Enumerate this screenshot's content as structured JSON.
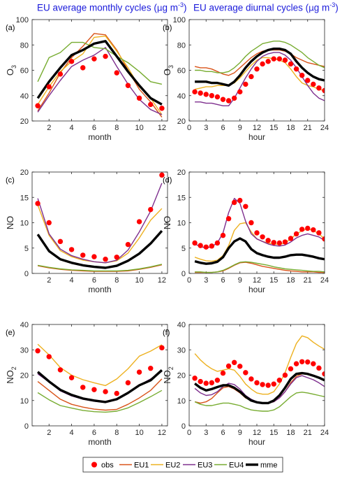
{
  "titles": {
    "left": {
      "text": "EU average monthly cycles (",
      "mu": "μ",
      "unit": "g m",
      "exp": "-3",
      "close": ")"
    },
    "right": {
      "text": "EU average diurnal cycles (",
      "mu": "μ",
      "unit": "g m",
      "exp": "-3",
      "close": ")"
    }
  },
  "colors": {
    "obs": "#ff0000",
    "EU1": "#d95319",
    "EU2": "#edb120",
    "EU3": "#7e2f8e",
    "EU4": "#77ac30",
    "mme": "#000000"
  },
  "legend": [
    {
      "key": "obs",
      "label": "obs",
      "kind": "marker"
    },
    {
      "key": "EU1",
      "label": "EU1",
      "kind": "line"
    },
    {
      "key": "EU2",
      "label": "EU2",
      "kind": "line"
    },
    {
      "key": "EU3",
      "label": "EU3",
      "kind": "line"
    },
    {
      "key": "EU4",
      "label": "EU4",
      "kind": "line"
    },
    {
      "key": "mme",
      "label": "mme",
      "kind": "thick"
    }
  ],
  "chart_data": [
    {
      "panel": "(a)",
      "type": "line",
      "xlabel": "month",
      "ylabel": "O",
      "ylabel_sub": "3",
      "xlim": [
        0.5,
        12.5
      ],
      "ylim": [
        20,
        100
      ],
      "xticks": [
        2,
        4,
        6,
        8,
        10,
        12
      ],
      "yticks": [
        20,
        40,
        60,
        80,
        100
      ],
      "x": [
        1,
        2,
        3,
        4,
        5,
        6,
        7,
        8,
        9,
        10,
        11,
        12
      ],
      "series": [
        {
          "name": "obs",
          "values": [
            32,
            47,
            57,
            67,
            62,
            69,
            71,
            58,
            48,
            38,
            33,
            30
          ]
        },
        {
          "name": "EU1",
          "values": [
            28,
            42,
            58,
            70,
            79,
            89,
            88,
            76,
            60,
            45,
            35,
            23
          ]
        },
        {
          "name": "EU2",
          "values": [
            33,
            47,
            59,
            67,
            73,
            86,
            87,
            75,
            62,
            47,
            38,
            25
          ]
        },
        {
          "name": "EU3",
          "values": [
            27,
            40,
            52,
            63,
            68,
            72,
            78,
            63,
            49,
            37,
            29,
            25
          ]
        },
        {
          "name": "EU4",
          "values": [
            51,
            70,
            74,
            82,
            82,
            78,
            77,
            71,
            66,
            59,
            51,
            49
          ]
        },
        {
          "name": "mme",
          "values": [
            38,
            51,
            62,
            72,
            76,
            81,
            83,
            71,
            59,
            48,
            38,
            33
          ]
        }
      ]
    },
    {
      "panel": "(b)",
      "type": "line",
      "xlabel": "hour",
      "ylabel": "O",
      "ylabel_sub": "3",
      "xlim": [
        0,
        24
      ],
      "ylim": [
        20,
        100
      ],
      "xticks": [
        0,
        3,
        6,
        9,
        12,
        15,
        18,
        21,
        24
      ],
      "yticks": [
        20,
        40,
        60,
        80,
        100
      ],
      "x": [
        1,
        2,
        3,
        4,
        5,
        6,
        7,
        8,
        9,
        10,
        11,
        12,
        13,
        14,
        15,
        16,
        17,
        18,
        19,
        20,
        21,
        22,
        23,
        24
      ],
      "series": [
        {
          "name": "obs",
          "values": [
            43,
            42,
            41,
            40,
            39,
            37,
            36,
            38,
            43,
            49,
            55,
            61,
            65,
            67,
            69,
            69,
            68,
            65,
            61,
            56,
            52,
            49,
            46,
            44
          ]
        },
        {
          "name": "EU1",
          "values": [
            63,
            62,
            62,
            61,
            59,
            57,
            56,
            58,
            62,
            66,
            70,
            73,
            75,
            76,
            76,
            76,
            75,
            73,
            70,
            68,
            66,
            65,
            64,
            63
          ]
        },
        {
          "name": "EU2",
          "values": [
            45,
            46,
            47,
            47,
            48,
            48,
            48,
            50,
            54,
            59,
            64,
            68,
            70,
            70,
            69,
            68,
            66,
            61,
            55,
            50,
            48,
            47,
            45,
            44
          ]
        },
        {
          "name": "EU3",
          "values": [
            35,
            35,
            34,
            34,
            33,
            32,
            32,
            38,
            46,
            54,
            61,
            67,
            71,
            73,
            74,
            74,
            72,
            68,
            62,
            55,
            48,
            42,
            38,
            36
          ]
        },
        {
          "name": "EU4",
          "values": [
            60,
            60,
            59,
            59,
            58,
            58,
            59,
            62,
            66,
            71,
            75,
            78,
            81,
            82,
            83,
            83,
            82,
            80,
            77,
            74,
            70,
            67,
            64,
            62
          ]
        },
        {
          "name": "mme",
          "values": [
            51,
            51,
            51,
            50,
            50,
            49,
            48,
            51,
            56,
            62,
            67,
            71,
            74,
            76,
            77,
            77,
            76,
            73,
            67,
            62,
            58,
            55,
            53,
            52
          ]
        }
      ]
    },
    {
      "panel": "(c)",
      "type": "line",
      "xlabel": "month",
      "ylabel": "NO",
      "ylabel_sub": "",
      "xlim": [
        0.5,
        12.5
      ],
      "ylim": [
        0,
        20
      ],
      "xticks": [
        2,
        4,
        6,
        8,
        10,
        12
      ],
      "yticks": [
        0,
        5,
        10,
        15,
        20
      ],
      "x": [
        1,
        2,
        3,
        4,
        5,
        6,
        7,
        8,
        9,
        10,
        11,
        12
      ],
      "series": [
        {
          "name": "obs",
          "values": [
            13.8,
            10.0,
            6.3,
            4.7,
            3.6,
            3.3,
            2.8,
            3.2,
            5.7,
            10.2,
            12.6,
            19.4
          ]
        },
        {
          "name": "EU1",
          "values": [
            1.5,
            1.1,
            0.8,
            0.6,
            0.5,
            0.4,
            0.4,
            0.4,
            0.5,
            0.8,
            1.2,
            1.7
          ]
        },
        {
          "name": "EU2",
          "values": [
            13.5,
            7.5,
            4.5,
            3.3,
            2.6,
            2.3,
            2.1,
            2.5,
            4.0,
            7.0,
            10.5,
            12.8
          ]
        },
        {
          "name": "EU3",
          "values": [
            14.8,
            7.8,
            4.8,
            3.5,
            2.8,
            2.3,
            2.1,
            2.6,
            4.6,
            8.2,
            12.3,
            17.8
          ]
        },
        {
          "name": "EU4",
          "values": [
            1.6,
            1.2,
            0.9,
            0.7,
            0.6,
            0.5,
            0.5,
            0.5,
            0.6,
            0.9,
            1.3,
            1.8
          ]
        },
        {
          "name": "mme",
          "values": [
            7.7,
            4.4,
            2.8,
            2.1,
            1.6,
            1.3,
            1.1,
            1.5,
            2.5,
            3.9,
            5.9,
            8.4
          ]
        }
      ]
    },
    {
      "panel": "(d)",
      "type": "line",
      "xlabel": "hour",
      "ylabel": "NO",
      "ylabel_sub": "",
      "xlim": [
        0,
        24
      ],
      "ylim": [
        0,
        20
      ],
      "xticks": [
        0,
        3,
        6,
        9,
        12,
        15,
        18,
        21,
        24
      ],
      "yticks": [
        0,
        5,
        10,
        15,
        20
      ],
      "x": [
        1,
        2,
        3,
        4,
        5,
        6,
        7,
        8,
        9,
        10,
        11,
        12,
        13,
        14,
        15,
        16,
        17,
        18,
        19,
        20,
        21,
        22,
        23,
        24
      ],
      "series": [
        {
          "name": "obs",
          "values": [
            6.0,
            5.5,
            5.2,
            5.4,
            6.0,
            7.5,
            10.8,
            14.0,
            14.4,
            13.2,
            10.0,
            8.0,
            7.2,
            6.5,
            6.1,
            6.0,
            6.2,
            6.9,
            7.8,
            8.7,
            8.9,
            8.6,
            8.0,
            6.8
          ]
        },
        {
          "name": "EU1",
          "values": [
            0.2,
            0.2,
            0.2,
            0.2,
            0.3,
            0.5,
            1.0,
            1.6,
            2.1,
            2.2,
            2.0,
            1.7,
            1.4,
            1.2,
            1.0,
            0.8,
            0.6,
            0.5,
            0.4,
            0.3,
            0.3,
            0.3,
            0.2,
            0.2
          ]
        },
        {
          "name": "EU2",
          "values": [
            3.2,
            2.8,
            2.5,
            2.4,
            2.6,
            3.5,
            5.5,
            8.5,
            9.8,
            10.0,
            8.2,
            6.8,
            6.3,
            6.0,
            5.8,
            5.7,
            6.0,
            6.8,
            7.8,
            8.4,
            8.8,
            8.5,
            7.8,
            6.8
          ]
        },
        {
          "name": "EU3",
          "values": [
            5.8,
            5.3,
            5.0,
            5.3,
            6.0,
            8.0,
            12.0,
            14.8,
            13.8,
            10.3,
            7.8,
            6.8,
            6.3,
            5.8,
            5.5,
            5.4,
            5.6,
            6.2,
            7.0,
            7.5,
            7.8,
            7.5,
            7.2,
            6.5
          ]
        },
        {
          "name": "EU4",
          "values": [
            0.3,
            0.3,
            0.2,
            0.2,
            0.3,
            0.6,
            1.1,
            1.7,
            2.2,
            2.3,
            2.2,
            2.0,
            1.8,
            1.6,
            1.3,
            1.1,
            0.9,
            0.8,
            0.7,
            0.6,
            0.5,
            0.4,
            0.4,
            0.3
          ]
        },
        {
          "name": "mme",
          "values": [
            2.4,
            2.1,
            1.9,
            2.0,
            2.3,
            3.2,
            5.0,
            6.3,
            6.9,
            6.3,
            4.8,
            4.0,
            3.6,
            3.3,
            3.1,
            3.1,
            3.3,
            3.6,
            3.7,
            3.7,
            3.5,
            3.3,
            3.0,
            2.8
          ]
        }
      ]
    },
    {
      "panel": "(e)",
      "type": "line",
      "xlabel": "month",
      "ylabel": "NO",
      "ylabel_sub": "2",
      "xlim": [
        0.5,
        12.5
      ],
      "ylim": [
        0,
        40
      ],
      "xticks": [
        2,
        4,
        6,
        8,
        10,
        12
      ],
      "yticks": [
        0,
        10,
        20,
        30,
        40
      ],
      "x": [
        1,
        2,
        3,
        4,
        5,
        6,
        7,
        8,
        9,
        10,
        11,
        12
      ],
      "series": [
        {
          "name": "obs",
          "values": [
            29.6,
            27.3,
            22.1,
            19.0,
            15.2,
            14.3,
            13.5,
            12.8,
            17.0,
            21.2,
            22.7,
            30.8
          ]
        },
        {
          "name": "EU1",
          "values": [
            17.5,
            14.0,
            10.5,
            8.5,
            7.4,
            6.6,
            6.2,
            6.5,
            8.5,
            11.0,
            14.0,
            18.5
          ]
        },
        {
          "name": "EU2",
          "values": [
            32.2,
            28.0,
            23.0,
            20.0,
            18.2,
            17.0,
            15.9,
            18.5,
            22.5,
            27.5,
            29.5,
            32.0
          ]
        },
        {
          "name": "EU3",
          "values": [
            20.5,
            17.3,
            13.8,
            11.8,
            10.5,
            9.7,
            9.2,
            10.3,
            13.0,
            16.0,
            18.5,
            21.5
          ]
        },
        {
          "name": "EU4",
          "values": [
            13.1,
            10.3,
            8.0,
            7.0,
            6.1,
            5.6,
            5.4,
            5.8,
            7.1,
            9.2,
            11.5,
            14.0
          ]
        },
        {
          "name": "mme",
          "values": [
            21.3,
            17.5,
            14.2,
            12.2,
            10.8,
            10.0,
            9.4,
            10.5,
            13.0,
            16.0,
            18.0,
            22.0
          ]
        }
      ]
    },
    {
      "panel": "(f)",
      "type": "line",
      "xlabel": "hour",
      "ylabel": "NO",
      "ylabel_sub": "2",
      "xlim": [
        0,
        24
      ],
      "ylim": [
        0,
        40
      ],
      "xticks": [
        0,
        3,
        6,
        9,
        12,
        15,
        18,
        21,
        24
      ],
      "yticks": [
        0,
        10,
        20,
        30,
        40
      ],
      "x": [
        1,
        2,
        3,
        4,
        5,
        6,
        7,
        8,
        9,
        10,
        11,
        12,
        13,
        14,
        15,
        16,
        17,
        18,
        19,
        20,
        21,
        22,
        23,
        24
      ],
      "series": [
        {
          "name": "obs",
          "values": [
            18.8,
            17.5,
            16.8,
            17.0,
            18.0,
            20.8,
            23.6,
            25.0,
            23.5,
            21.0,
            18.5,
            17.0,
            16.3,
            16.0,
            16.5,
            18.0,
            20.0,
            22.5,
            24.5,
            25.3,
            25.2,
            24.5,
            22.8,
            20.5
          ]
        },
        {
          "name": "EU1",
          "values": [
            9.5,
            9.0,
            9.5,
            10.8,
            13.0,
            15.0,
            15.5,
            14.5,
            13.0,
            11.0,
            10.0,
            9.5,
            9.0,
            9.0,
            9.5,
            11.0,
            13.5,
            17.0,
            19.5,
            20.5,
            20.3,
            19.8,
            19.0,
            18.0
          ]
        },
        {
          "name": "EU2",
          "values": [
            28.5,
            26.0,
            24.0,
            22.5,
            21.5,
            22.0,
            22.5,
            22.0,
            19.5,
            16.5,
            14.5,
            13.0,
            12.5,
            12.5,
            13.5,
            16.5,
            21.0,
            27.0,
            32.5,
            35.5,
            34.8,
            33.0,
            31.5,
            30.2
          ]
        },
        {
          "name": "EU3",
          "values": [
            14.8,
            13.0,
            12.0,
            12.3,
            13.5,
            15.5,
            16.8,
            16.3,
            14.5,
            12.0,
            10.5,
            9.5,
            9.0,
            9.0,
            9.5,
            11.0,
            13.5,
            16.5,
            19.0,
            19.8,
            19.0,
            18.2,
            17.0,
            15.5
          ]
        },
        {
          "name": "EU4",
          "values": [
            9.5,
            8.5,
            8.0,
            8.0,
            8.5,
            9.0,
            9.0,
            8.5,
            8.0,
            7.0,
            6.3,
            6.0,
            5.8,
            5.8,
            6.3,
            7.5,
            9.5,
            11.5,
            13.0,
            13.3,
            13.0,
            12.5,
            12.0,
            11.5
          ]
        },
        {
          "name": "mme",
          "values": [
            16.7,
            15.0,
            14.0,
            14.5,
            15.3,
            16.0,
            16.0,
            15.0,
            13.5,
            11.5,
            10.0,
            9.3,
            9.0,
            9.0,
            10.0,
            12.0,
            15.0,
            18.5,
            20.5,
            20.8,
            20.5,
            19.8,
            19.0,
            18.0
          ]
        }
      ]
    }
  ]
}
